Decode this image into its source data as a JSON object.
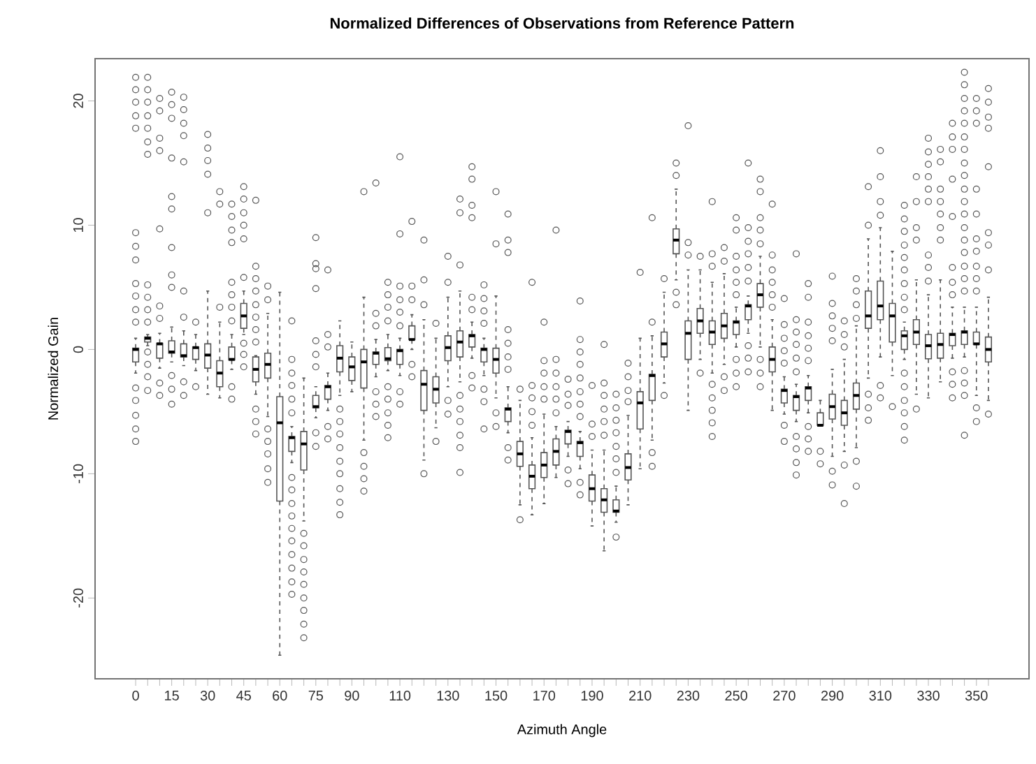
{
  "chart_data": {
    "type": "box",
    "title": "Normalized Differences of Observations from Reference Pattern",
    "xlabel": "Azimuth Angle",
    "ylabel": "Normalized Gain",
    "categories": [
      "0",
      null,
      null,
      "15",
      null,
      null,
      "30",
      null,
      null,
      "45",
      null,
      null,
      "60",
      null,
      null,
      "75",
      null,
      null,
      "90",
      null,
      null,
      null,
      "110",
      null,
      null,
      null,
      "130",
      null,
      null,
      null,
      "150",
      null,
      null,
      null,
      "170",
      null,
      null,
      null,
      "190",
      null,
      null,
      null,
      "210",
      null,
      null,
      null,
      "230",
      null,
      null,
      null,
      "250",
      null,
      null,
      null,
      "270",
      null,
      null,
      null,
      "290",
      null,
      null,
      null,
      "310",
      null,
      null,
      null,
      "330",
      null,
      null,
      null,
      "350",
      null
    ],
    "ylim": [
      -26.5,
      23.4
    ],
    "yticks": [
      -20,
      -10,
      0,
      10,
      20
    ],
    "marker": "circle",
    "series": [
      {
        "color": "#555555",
        "boxes": [
          {
            "low": -1.9,
            "q1": -1.0,
            "median": 0.0,
            "q3": 0.1,
            "high": 0.9,
            "outliers": [
              21.9,
              20.9,
              19.9,
              18.8,
              17.8,
              9.4,
              8.3,
              7.2,
              5.3,
              4.3,
              3.2,
              2.2,
              -3.1,
              -4.1,
              -5.3,
              -6.4,
              -7.4
            ]
          },
          {
            "low": 0.3,
            "q1": 0.6,
            "median": 0.9,
            "q3": 1.0,
            "high": 1.2,
            "outliers": [
              21.9,
              20.9,
              19.9,
              18.8,
              17.8,
              16.7,
              15.7,
              5.2,
              4.2,
              3.2,
              2.2,
              -0.2,
              -1.2,
              -2.2,
              -3.3
            ]
          },
          {
            "low": -1.5,
            "q1": -0.7,
            "median": 0.45,
            "q3": 0.5,
            "high": 1.3,
            "outliers": [
              20.2,
              19.2,
              17.0,
              16.0,
              9.7,
              3.5,
              2.5,
              -2.7,
              -3.7
            ]
          },
          {
            "low": -1.0,
            "q1": -0.3,
            "median": -0.2,
            "q3": 0.7,
            "high": 1.8,
            "outliers": [
              20.7,
              19.7,
              18.6,
              15.4,
              12.3,
              11.3,
              8.2,
              6.0,
              5.0,
              -2.1,
              -3.2,
              -4.4
            ]
          },
          {
            "low": -1.3,
            "q1": -0.6,
            "median": -0.5,
            "q3": 0.45,
            "high": 1.5,
            "outliers": [
              20.3,
              19.3,
              18.2,
              17.2,
              15.1,
              4.7,
              2.6,
              -2.6,
              -3.7
            ]
          },
          {
            "low": -1.7,
            "q1": -0.8,
            "median": 0.15,
            "q3": 0.2,
            "high": 1.2,
            "outliers": [
              2.2,
              -3.0
            ]
          },
          {
            "low": -3.6,
            "q1": -1.5,
            "median": -0.45,
            "q3": 0.45,
            "high": 4.7,
            "outliers": [
              17.3,
              16.2,
              15.2,
              14.1,
              11.0
            ]
          },
          {
            "low": -3.9,
            "q1": -3.0,
            "median": -1.9,
            "q3": -0.9,
            "high": 2.2,
            "outliers": [
              12.7,
              11.7,
              3.4
            ]
          },
          {
            "low": -1.6,
            "q1": -0.85,
            "median": -0.8,
            "q3": 0.2,
            "high": 1.2,
            "outliers": [
              11.7,
              10.7,
              9.6,
              8.6,
              5.4,
              4.4,
              3.4,
              2.3,
              -3.0,
              -4.0
            ]
          },
          {
            "low": 1.2,
            "q1": 1.7,
            "median": 2.7,
            "q3": 3.7,
            "high": 4.7,
            "outliers": [
              13.1,
              12.1,
              11.0,
              10.0,
              8.9,
              5.8,
              0.5,
              -0.4,
              -1.4
            ]
          },
          {
            "low": -3.6,
            "q1": -2.6,
            "median": -1.6,
            "q3": -0.6,
            "high": -0.5,
            "outliers": [
              12.0,
              6.7,
              5.7,
              4.7,
              3.6,
              2.6,
              1.6,
              0.6,
              -4.8,
              -5.8,
              -6.8
            ]
          },
          {
            "low": -5.4,
            "q1": -2.3,
            "median": -1.2,
            "q3": -0.3,
            "high": 2.9,
            "outliers": [
              5.1,
              4.0,
              -6.4,
              -7.4,
              -8.4,
              -9.6,
              -10.7
            ]
          },
          {
            "low": -24.6,
            "q1": -12.2,
            "median": -5.9,
            "q3": -3.8,
            "high": 4.6
          },
          {
            "low": -9.1,
            "q1": -8.2,
            "median": -7.1,
            "q3": -7.0,
            "high": -6.2,
            "outliers": [
              2.3,
              -0.8,
              -1.9,
              -2.9,
              -4.0,
              -5.1,
              -10.3,
              -11.3,
              -12.4,
              -13.4,
              -14.4,
              -15.4,
              -16.5,
              -17.6,
              -18.7,
              -19.7
            ]
          },
          {
            "low": -13.8,
            "q1": -9.7,
            "median": -7.6,
            "q3": -6.6,
            "high": -2.3,
            "outliers": [
              -14.8,
              -15.8,
              -16.9,
              -17.9,
              -18.9,
              -20.0,
              -21.0,
              -22.1,
              -23.2
            ]
          },
          {
            "low": -5.5,
            "q1": -4.7,
            "median": -4.6,
            "q3": -3.7,
            "high": -3.0,
            "outliers": [
              9.0,
              6.9,
              6.5,
              4.9,
              0.7,
              -0.4,
              -1.4,
              -6.7,
              -7.8
            ]
          },
          {
            "low": -4.9,
            "q1": -4.0,
            "median": -3.0,
            "q3": -2.9,
            "high": -1.9,
            "outliers": [
              6.4,
              1.2,
              0.2,
              -6.2,
              -7.2
            ]
          },
          {
            "low": -3.7,
            "q1": -1.8,
            "median": -0.7,
            "q3": 0.3,
            "high": 2.3,
            "outliers": [
              -4.8,
              -5.8,
              -6.8,
              -7.9,
              -9.0,
              -10.0,
              -11.2,
              -12.3,
              -13.3
            ]
          },
          {
            "low": -3.4,
            "q1": -2.5,
            "median": -1.4,
            "q3": -0.6,
            "high": 0.6
          },
          {
            "low": -7.3,
            "q1": -3.1,
            "median": -1.0,
            "q3": 0.0,
            "high": 4.2,
            "outliers": [
              12.7,
              -8.3,
              -9.4,
              -10.4,
              -11.4
            ]
          },
          {
            "low": -2.2,
            "q1": -1.2,
            "median": -0.3,
            "q3": -0.2,
            "high": 0.8,
            "outliers": [
              13.4,
              2.9,
              1.9,
              -3.4,
              -4.4,
              -5.4
            ]
          },
          {
            "low": -1.7,
            "q1": -0.9,
            "median": -0.75,
            "q3": 0.15,
            "high": 1.2,
            "outliers": [
              5.4,
              4.4,
              3.4,
              2.3,
              -3.0,
              -4.0,
              -5.1,
              -6.1,
              -7.1
            ]
          },
          {
            "low": -2.1,
            "q1": -1.2,
            "median": -0.1,
            "q3": 0.0,
            "high": 0.9,
            "outliers": [
              15.5,
              9.3,
              5.1,
              4.0,
              3.0,
              1.9,
              -3.4,
              -4.4
            ]
          },
          {
            "low": 0.0,
            "q1": 0.8,
            "median": 0.8,
            "q3": 1.9,
            "high": 2.8,
            "outliers": [
              10.3,
              5.1,
              4.0,
              -1.2,
              -2.2
            ]
          },
          {
            "low": -8.9,
            "q1": -4.9,
            "median": -2.8,
            "q3": -1.7,
            "high": 2.4,
            "outliers": [
              8.8,
              5.6,
              3.6,
              -10.0
            ]
          },
          {
            "low": -6.3,
            "q1": -4.3,
            "median": -3.2,
            "q3": -2.2,
            "high": 0.9,
            "outliers": [
              2.1,
              -7.4
            ]
          },
          {
            "low": -3.0,
            "q1": -0.9,
            "median": 0.15,
            "q3": 1.1,
            "high": 4.2,
            "outliers": [
              7.5,
              5.4,
              -4.1,
              -5.2
            ]
          },
          {
            "low": -2.6,
            "q1": -0.6,
            "median": 0.6,
            "q3": 1.5,
            "high": 4.7,
            "outliers": [
              12.1,
              11.0,
              6.8,
              -3.7,
              -4.8,
              -5.8,
              -6.9,
              -7.9,
              -9.9
            ]
          },
          {
            "low": -0.7,
            "q1": 0.2,
            "median": 1.1,
            "q3": 1.2,
            "high": 2.2,
            "outliers": [
              14.7,
              13.7,
              11.6,
              10.6,
              4.2,
              3.2,
              -2.1,
              -3.1
            ]
          },
          {
            "low": -2.1,
            "q1": -1.0,
            "median": 0.0,
            "q3": 0.1,
            "high": 0.9,
            "outliers": [
              5.2,
              4.1,
              3.1,
              2.1,
              -3.2,
              -4.2,
              -6.4
            ]
          },
          {
            "low": -3.9,
            "q1": -1.9,
            "median": -0.8,
            "q3": 0.1,
            "high": 4.3,
            "outliers": [
              12.7,
              8.5,
              -5.1,
              -6.2
            ]
          },
          {
            "low": -6.7,
            "q1": -5.8,
            "median": -4.8,
            "q3": -4.7,
            "high": -3.0,
            "outliers": [
              10.9,
              8.8,
              7.8,
              1.6,
              0.5,
              -0.6,
              -1.6,
              -7.9,
              -8.9
            ]
          },
          {
            "low": -12.5,
            "q1": -9.4,
            "median": -8.4,
            "q3": -7.4,
            "high": -4.1,
            "outliers": [
              -3.2,
              -13.7
            ]
          },
          {
            "low": -13.3,
            "q1": -11.2,
            "median": -10.2,
            "q3": -9.3,
            "high": -7.1,
            "outliers": [
              5.4,
              -2.9,
              -3.9,
              -5.0,
              -6.1
            ]
          },
          {
            "low": -12.4,
            "q1": -10.3,
            "median": -9.3,
            "q3": -8.3,
            "high": -5.2,
            "outliers": [
              2.2,
              -0.9,
              -1.9,
              -3.0,
              -4.0
            ]
          },
          {
            "low": -10.3,
            "q1": -9.3,
            "median": -8.2,
            "q3": -7.2,
            "high": -6.2,
            "outliers": [
              9.6,
              -0.8,
              -1.9,
              -3.0,
              -4.0,
              -5.1
            ]
          },
          {
            "low": -8.6,
            "q1": -7.6,
            "median": -6.6,
            "q3": -6.5,
            "high": -5.8,
            "outliers": [
              -2.4,
              -3.6,
              -4.5,
              -9.7,
              -10.8
            ]
          },
          {
            "low": -9.6,
            "q1": -8.6,
            "median": -7.5,
            "q3": -7.4,
            "high": -6.6,
            "outliers": [
              3.9,
              0.8,
              -0.2,
              -1.2,
              -2.3,
              -3.4,
              -4.4,
              -5.4,
              -10.7,
              -11.7
            ]
          },
          {
            "low": -14.2,
            "q1": -12.2,
            "median": -11.2,
            "q3": -10.1,
            "high": -8.1,
            "outliers": [
              -2.9,
              -6.0,
              -7.0
            ]
          },
          {
            "low": -16.2,
            "q1": -13.1,
            "median": -12.1,
            "q3": -11.2,
            "high": -8.1,
            "outliers": [
              0.4,
              -2.7,
              -3.7,
              -4.8,
              -5.8,
              -6.9
            ]
          },
          {
            "low": -13.9,
            "q1": -13.1,
            "median": -13.0,
            "q3": -12.1,
            "high": -11.0,
            "outliers": [
              -3.6,
              -4.7,
              -5.7,
              -6.7,
              -7.8,
              -8.8,
              -9.9,
              -15.1
            ]
          },
          {
            "low": -12.5,
            "q1": -10.5,
            "median": -9.5,
            "q3": -8.4,
            "high": -5.3,
            "outliers": [
              -1.1,
              -2.2,
              -3.3,
              -4.2
            ]
          },
          {
            "low": -9.6,
            "q1": -6.4,
            "median": -4.3,
            "q3": -3.4,
            "high": 0.9,
            "outliers": [
              6.2
            ]
          },
          {
            "low": -7.3,
            "q1": -4.1,
            "median": -2.1,
            "q3": -2.0,
            "high": 1.1,
            "outliers": [
              10.6,
              2.2,
              -8.3,
              -9.4
            ]
          },
          {
            "low": -2.7,
            "q1": -0.6,
            "median": 0.45,
            "q3": 1.4,
            "high": 4.6,
            "outliers": [
              5.7,
              -3.7
            ]
          },
          {
            "low": 5.6,
            "q1": 7.7,
            "median": 8.8,
            "q3": 9.7,
            "high": 12.9,
            "outliers": [
              15.0,
              14.0,
              4.6,
              3.6
            ]
          },
          {
            "low": -4.9,
            "q1": -0.8,
            "median": 1.3,
            "q3": 2.3,
            "high": 6.4,
            "outliers": [
              18.0,
              8.6,
              7.6
            ]
          },
          {
            "low": -0.8,
            "q1": 1.3,
            "median": 2.3,
            "q3": 3.3,
            "high": 6.4,
            "outliers": [
              7.5,
              -1.9
            ]
          },
          {
            "low": -1.9,
            "q1": 0.4,
            "median": 1.4,
            "q3": 2.3,
            "high": 5.4,
            "outliers": [
              11.9,
              7.7,
              6.7,
              -2.8,
              -3.9,
              -4.9,
              -5.9,
              -7.0
            ]
          },
          {
            "low": -1.2,
            "q1": 0.9,
            "median": 1.9,
            "q3": 2.9,
            "high": 6.1,
            "outliers": [
              8.2,
              7.1,
              -2.2,
              -3.3
            ]
          },
          {
            "low": 0.2,
            "q1": 1.2,
            "median": 2.2,
            "q3": 2.3,
            "high": 3.4,
            "outliers": [
              10.6,
              9.6,
              7.5,
              6.4,
              5.4,
              4.4,
              -0.8,
              -1.9,
              -3.0
            ]
          },
          {
            "low": 1.3,
            "q1": 2.4,
            "median": 3.5,
            "q3": 3.6,
            "high": 4.3,
            "outliers": [
              15.0,
              9.8,
              8.7,
              7.7,
              6.6,
              5.5,
              0.3,
              -0.7,
              -1.8
            ]
          },
          {
            "low": 0.2,
            "q1": 3.4,
            "median": 4.4,
            "q3": 5.3,
            "high": 7.5,
            "outliers": [
              13.7,
              12.7,
              10.6,
              9.6,
              8.5,
              -0.8,
              -1.9,
              -3.0
            ]
          },
          {
            "low": -4.9,
            "q1": -1.8,
            "median": -0.8,
            "q3": 0.2,
            "high": 2.4,
            "outliers": [
              11.7,
              7.6,
              6.4,
              5.4,
              4.4,
              3.4
            ]
          },
          {
            "low": -5.2,
            "q1": -4.3,
            "median": -3.3,
            "q3": -3.2,
            "high": -2.2,
            "outliers": [
              4.1,
              2.0,
              0.9,
              -0.1,
              -1.1,
              -6.1,
              -7.4
            ]
          },
          {
            "low": -5.8,
            "q1": -4.9,
            "median": -3.8,
            "q3": -3.7,
            "high": -2.8,
            "outliers": [
              7.7,
              2.4,
              1.4,
              0.4,
              -0.7,
              -1.8,
              -7.0,
              -8.0,
              -9.1,
              -10.1
            ]
          },
          {
            "low": -5.1,
            "q1": -4.1,
            "median": -3.1,
            "q3": -3.0,
            "high": -2.1,
            "outliers": [
              5.3,
              4.2,
              2.2,
              1.1,
              0.1,
              -0.9,
              -6.2,
              -7.2,
              -8.2
            ]
          },
          {
            "low": -6.1,
            "q1": -6.1,
            "median": -6.1,
            "q3": -5.1,
            "high": -4.1,
            "outliers": [
              -8.2,
              -9.2
            ]
          },
          {
            "low": -8.6,
            "q1": -5.6,
            "median": -4.6,
            "q3": -3.6,
            "high": -1.6,
            "outliers": [
              5.9,
              3.7,
              2.7,
              1.7,
              0.7,
              -9.8,
              -10.9
            ]
          },
          {
            "low": -8.2,
            "q1": -6.1,
            "median": -5.1,
            "q3": -4.1,
            "high": -0.8,
            "outliers": [
              2.3,
              1.2,
              0.2,
              -9.3,
              -12.4
            ]
          },
          {
            "low": -7.9,
            "q1": -4.8,
            "median": -3.7,
            "q3": -2.7,
            "high": 1.9,
            "outliers": [
              5.7,
              4.7,
              3.6,
              2.5,
              -9.0,
              -11.0
            ]
          },
          {
            "low": -2.3,
            "q1": 1.7,
            "median": 2.7,
            "q3": 4.7,
            "high": 8.9,
            "outliers": [
              13.1,
              10.0,
              -3.6,
              -4.7,
              -5.7
            ]
          },
          {
            "low": -0.6,
            "q1": 2.4,
            "median": 3.5,
            "q3": 5.5,
            "high": 9.8,
            "outliers": [
              16.0,
              13.9,
              11.9,
              10.8,
              -2.9,
              -3.9
            ]
          },
          {
            "low": -2.1,
            "q1": 0.6,
            "median": 2.7,
            "q3": 3.7,
            "high": 7.9,
            "outliers": [
              -4.6
            ]
          },
          {
            "low": -0.8,
            "q1": 0.0,
            "median": 1.1,
            "q3": 1.5,
            "high": 2.2,
            "outliers": [
              11.6,
              10.5,
              9.5,
              8.4,
              7.4,
              6.4,
              5.3,
              4.2,
              3.2,
              -1.9,
              -3.0,
              -4.1,
              -5.1,
              -6.2,
              -7.3
            ]
          },
          {
            "low": -3.6,
            "q1": 0.4,
            "median": 1.4,
            "q3": 2.4,
            "high": 5.6,
            "outliers": [
              13.9,
              11.9,
              9.8,
              8.8,
              -4.8
            ]
          },
          {
            "low": -3.9,
            "q1": -0.75,
            "median": 0.3,
            "q3": 1.2,
            "high": 4.4,
            "outliers": [
              17.0,
              15.9,
              14.9,
              13.9,
              12.9,
              11.9,
              7.6,
              6.6,
              5.5
            ]
          },
          {
            "low": -2.6,
            "q1": -0.7,
            "median": 0.4,
            "q3": 1.3,
            "high": 5.6,
            "outliers": [
              16.1,
              15.1,
              12.9,
              11.9,
              10.9,
              9.8,
              8.8
            ]
          },
          {
            "low": -0.7,
            "q1": 0.3,
            "median": 1.2,
            "q3": 1.3,
            "high": 3.4,
            "outliers": [
              18.2,
              17.1,
              16.1,
              13.7,
              10.7,
              6.6,
              5.4,
              4.4,
              -1.8,
              -2.8,
              -3.9
            ]
          },
          {
            "low": -0.6,
            "q1": 0.4,
            "median": 1.4,
            "q3": 1.5,
            "high": 3.4,
            "outliers": [
              22.3,
              21.3,
              20.2,
              19.2,
              18.2,
              17.1,
              16.1,
              15.0,
              14.0,
              12.9,
              11.9,
              10.9,
              9.8,
              8.8,
              7.8,
              6.7,
              5.7,
              4.7,
              -1.7,
              -2.7,
              -3.7,
              -6.9
            ]
          },
          {
            "low": -3.7,
            "q1": 0.4,
            "median": 0.45,
            "q3": 1.4,
            "high": 3.4,
            "outliers": [
              20.2,
              19.2,
              18.2,
              12.9,
              10.9,
              8.9,
              7.9,
              6.7,
              5.7,
              4.7,
              -4.7,
              -5.8
            ]
          },
          {
            "low": -4.1,
            "q1": -1.0,
            "median": 0.0,
            "q3": 1.0,
            "high": 4.2,
            "outliers": [
              21.0,
              19.9,
              18.7,
              17.8,
              14.7,
              9.4,
              8.4,
              6.4,
              -5.2
            ]
          }
        ]
      }
    ]
  }
}
